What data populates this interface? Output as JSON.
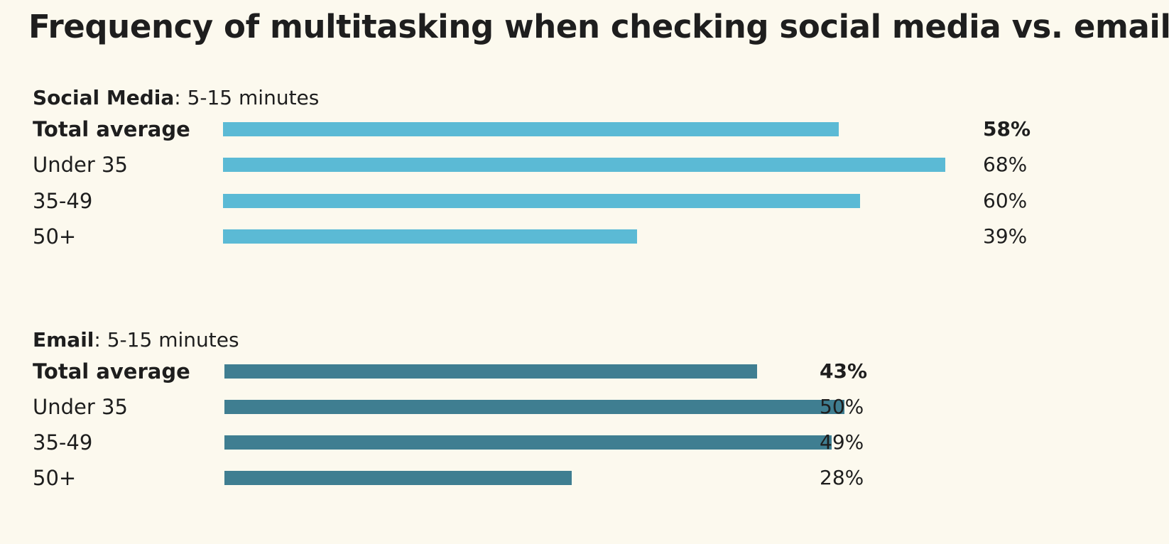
{
  "title": "Frequency of multitasking when checking social media vs. email",
  "chart_data": [
    {
      "type": "bar",
      "orientation": "horizontal",
      "heading": "Social Media",
      "subheading": ": 5-15 minutes",
      "categories": [
        "Total average",
        "Under 35",
        "35-49",
        "50+"
      ],
      "values": [
        58,
        68,
        60,
        39
      ],
      "value_labels": [
        "58%",
        "68%",
        "60%",
        "39%"
      ],
      "bold_category": "Total average",
      "unit": "%",
      "xlim": [
        0,
        68
      ],
      "color": "#5bbad5"
    },
    {
      "type": "bar",
      "orientation": "horizontal",
      "heading": "Email",
      "subheading": ": 5-15 minutes",
      "categories": [
        "Total average",
        "Under 35",
        "35-49",
        "50+"
      ],
      "values": [
        43,
        50,
        49,
        28
      ],
      "value_labels": [
        "43%",
        "50%",
        "49%",
        "28%"
      ],
      "bold_category": "Total average",
      "unit": "%",
      "xlim": [
        0,
        58
      ],
      "color": "#3f7e91"
    }
  ]
}
